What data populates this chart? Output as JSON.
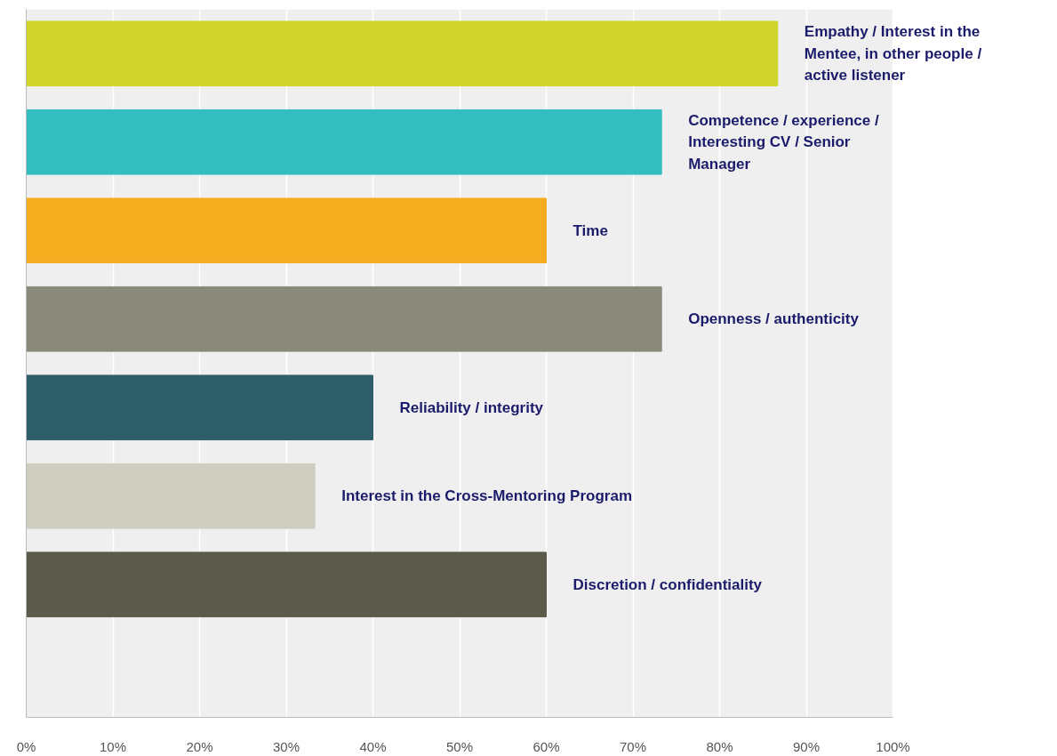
{
  "chart_data": {
    "type": "bar",
    "orientation": "horizontal",
    "categories": [
      "Empathy / Interest in the Mentee, in other people / active listener",
      "Competence / experience / Interesting CV / Senior Manager",
      "Time",
      "Openness / authenticity",
      "Reliability / integrity",
      "Interest in the Cross-Mentoring Program",
      "Discretion / confidentiality",
      null
    ],
    "values": [
      86.7,
      73.3,
      60,
      73.3,
      40,
      33.3,
      60,
      null
    ],
    "colors": [
      "#cfd52a",
      "#33bdbf",
      "#f5ad1f",
      "#8a8a7a",
      "#2e5e6a",
      "#cfcdc0",
      "#5c5a4a",
      "#cccccc"
    ],
    "xlim": [
      0,
      100
    ],
    "xticks": [
      {
        "value": 0,
        "label": "0%"
      },
      {
        "value": 10,
        "label": "10%"
      },
      {
        "value": 20,
        "label": "20%"
      },
      {
        "value": 30,
        "label": "30%"
      },
      {
        "value": 40,
        "label": "40%"
      },
      {
        "value": 50,
        "label": "50%"
      },
      {
        "value": 60,
        "label": "60%"
      },
      {
        "value": 70,
        "label": "70%"
      },
      {
        "value": 80,
        "label": "80%"
      },
      {
        "value": 90,
        "label": "90%"
      },
      {
        "value": 100,
        "label": "100%"
      }
    ],
    "grid": "x",
    "tick_labels": "x"
  }
}
